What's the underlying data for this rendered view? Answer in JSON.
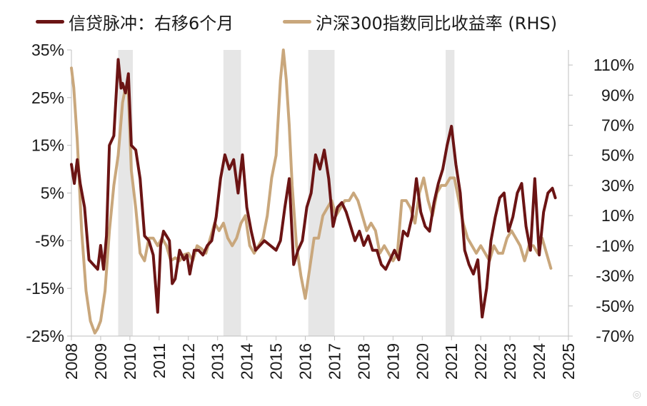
{
  "chart_data": {
    "type": "line",
    "legend_position": "top",
    "grid": false,
    "colors": {
      "credit": "#6b1414",
      "csi300": "#c9a77c",
      "shade": "#e6e6e6",
      "axis": "#bfbfbf",
      "text": "#1a1a1a"
    },
    "left_axis": {
      "ylim": [
        -25,
        35
      ],
      "ticks": [
        35,
        25,
        15,
        5,
        -5,
        -15,
        -25
      ],
      "tick_labels": [
        "35%",
        "25%",
        "15%",
        "5%",
        "-5%",
        "-15%",
        "-25%"
      ]
    },
    "right_axis": {
      "ylim": [
        -70,
        120
      ],
      "ticks": [
        110,
        90,
        70,
        50,
        30,
        10,
        -10,
        -30,
        -50,
        -70
      ],
      "tick_labels": [
        "110%",
        "90%",
        "70%",
        "50%",
        "30%",
        "10%",
        "-10%",
        "-30%",
        "-50%",
        "-70%"
      ]
    },
    "x_axis": {
      "xlim": [
        2008,
        2025
      ],
      "ticks": [
        2008,
        2009,
        2010,
        2011,
        2012,
        2013,
        2014,
        2015,
        2016,
        2017,
        2018,
        2019,
        2020,
        2021,
        2022,
        2023,
        2024,
        2025
      ],
      "tick_labels": [
        "2008",
        "2009",
        "2010",
        "2011",
        "2012",
        "2013",
        "2014",
        "2015",
        "2016",
        "2017",
        "2018",
        "2019",
        "2020",
        "2021",
        "2022",
        "2023",
        "2024",
        "2025"
      ]
    },
    "shaded_periods": [
      [
        2009.6,
        2010.1
      ],
      [
        2013.2,
        2013.8
      ],
      [
        2016.1,
        2017.0
      ],
      [
        2020.8,
        2021.1
      ]
    ],
    "series": [
      {
        "name": "信贷脉冲：右移6个月",
        "axis": "left",
        "color": "#6b1414",
        "x": [
          2008.0,
          2008.1,
          2008.2,
          2008.3,
          2008.45,
          2008.6,
          2008.75,
          2008.9,
          2009.0,
          2009.1,
          2009.2,
          2009.3,
          2009.45,
          2009.6,
          2009.7,
          2009.75,
          2009.85,
          2009.95,
          2010.05,
          2010.2,
          2010.35,
          2010.5,
          2010.65,
          2010.8,
          2010.95,
          2011.05,
          2011.15,
          2011.25,
          2011.35,
          2011.45,
          2011.55,
          2011.7,
          2011.85,
          2011.95,
          2012.05,
          2012.2,
          2012.35,
          2012.5,
          2012.65,
          2012.8,
          2012.95,
          2013.1,
          2013.25,
          2013.4,
          2013.55,
          2013.7,
          2013.85,
          2014.0,
          2014.15,
          2014.3,
          2014.45,
          2014.6,
          2014.8,
          2015.0,
          2015.15,
          2015.3,
          2015.45,
          2015.6,
          2015.75,
          2015.9,
          2016.05,
          2016.2,
          2016.35,
          2016.5,
          2016.65,
          2016.8,
          2016.95,
          2017.1,
          2017.25,
          2017.4,
          2017.55,
          2017.7,
          2017.85,
          2018.0,
          2018.15,
          2018.3,
          2018.45,
          2018.6,
          2018.75,
          2018.9,
          2019.05,
          2019.2,
          2019.35,
          2019.5,
          2019.65,
          2019.8,
          2019.95,
          2020.1,
          2020.25,
          2020.4,
          2020.55,
          2020.7,
          2020.85,
          2021.0,
          2021.15,
          2021.3,
          2021.45,
          2021.6,
          2021.75,
          2021.9,
          2022.05,
          2022.2,
          2022.35,
          2022.5,
          2022.65,
          2022.8,
          2022.95,
          2023.1,
          2023.25,
          2023.4,
          2023.55,
          2023.7,
          2023.85,
          2024.0,
          2024.15,
          2024.3,
          2024.45,
          2024.55
        ],
        "y": [
          11,
          7,
          12,
          7,
          2,
          -9,
          -10,
          -11,
          -6,
          -11,
          -4,
          15,
          17,
          33,
          27,
          28,
          26,
          30,
          15,
          14,
          8,
          -4,
          -5,
          -8,
          -20,
          -6,
          -3,
          -4,
          -5,
          -14,
          -13,
          -7,
          -9,
          -8,
          -12,
          -7,
          -7,
          -8,
          -6,
          -5,
          0,
          8,
          13,
          10,
          12,
          5,
          13,
          2,
          -3,
          -7,
          -6,
          -5,
          -6,
          -7,
          -5,
          2,
          8,
          -10,
          -7,
          -5,
          2,
          5,
          13,
          10,
          14,
          8,
          -2,
          2,
          3,
          1,
          -2,
          -5,
          -3,
          -6,
          -4,
          -7,
          -7,
          -10,
          -11,
          -9,
          -7,
          -9,
          -3,
          -4,
          0,
          8,
          1,
          -2,
          -3,
          3,
          7,
          10,
          15,
          19,
          11,
          5,
          -7,
          -10,
          -12,
          -9,
          -21,
          -15,
          -5,
          0,
          4,
          5,
          -3,
          0,
          5,
          7,
          -2,
          -7,
          8,
          -8,
          1,
          5,
          6,
          4
        ]
      },
      {
        "name": "沪深300指数同比收益率 (RHS)",
        "axis": "right",
        "color": "#c9a77c",
        "x": [
          2008.0,
          2008.08,
          2008.2,
          2008.35,
          2008.5,
          2008.65,
          2008.8,
          2008.9,
          2009.0,
          2009.15,
          2009.3,
          2009.45,
          2009.6,
          2009.75,
          2009.85,
          2009.95,
          2010.05,
          2010.2,
          2010.35,
          2010.5,
          2010.65,
          2010.8,
          2010.95,
          2011.1,
          2011.25,
          2011.4,
          2011.55,
          2011.7,
          2011.85,
          2012.0,
          2012.15,
          2012.3,
          2012.45,
          2012.6,
          2012.75,
          2012.9,
          2013.05,
          2013.2,
          2013.35,
          2013.5,
          2013.65,
          2013.8,
          2013.95,
          2014.1,
          2014.25,
          2014.4,
          2014.55,
          2014.7,
          2014.85,
          2015.0,
          2015.15,
          2015.25,
          2015.35,
          2015.45,
          2015.55,
          2015.7,
          2015.85,
          2016.0,
          2016.15,
          2016.3,
          2016.45,
          2016.6,
          2016.75,
          2016.9,
          2017.05,
          2017.2,
          2017.35,
          2017.5,
          2017.65,
          2017.8,
          2017.95,
          2018.1,
          2018.25,
          2018.4,
          2018.55,
          2018.7,
          2018.85,
          2019.0,
          2019.15,
          2019.3,
          2019.45,
          2019.6,
          2019.75,
          2019.9,
          2020.05,
          2020.2,
          2020.35,
          2020.5,
          2020.65,
          2020.8,
          2020.95,
          2021.1,
          2021.25,
          2021.4,
          2021.55,
          2021.7,
          2021.85,
          2022.0,
          2022.15,
          2022.3,
          2022.45,
          2022.6,
          2022.75,
          2022.9,
          2023.05,
          2023.2,
          2023.35,
          2023.5,
          2023.65,
          2023.8,
          2023.95,
          2024.1,
          2024.25,
          2024.4
        ],
        "y": [
          108,
          95,
          60,
          0,
          -40,
          -60,
          -68,
          -65,
          -60,
          -40,
          0,
          30,
          50,
          85,
          95,
          90,
          40,
          15,
          -15,
          -20,
          -5,
          -5,
          -10,
          -5,
          -10,
          -20,
          -18,
          -20,
          -16,
          -15,
          -20,
          -10,
          -12,
          -15,
          -5,
          5,
          0,
          5,
          -5,
          -10,
          -5,
          5,
          10,
          -10,
          -15,
          -10,
          -5,
          10,
          35,
          50,
          100,
          120,
          100,
          70,
          30,
          -10,
          -30,
          -45,
          -25,
          -5,
          -5,
          10,
          15,
          20,
          10,
          15,
          20,
          20,
          25,
          20,
          10,
          0,
          5,
          0,
          -15,
          -10,
          -15,
          -20,
          -15,
          20,
          20,
          15,
          5,
          25,
          35,
          20,
          10,
          25,
          30,
          30,
          35,
          35,
          20,
          5,
          -5,
          -10,
          -15,
          -10,
          -15,
          -20,
          -10,
          -15,
          -15,
          -5,
          0,
          -5,
          -10,
          -20,
          -10,
          -10,
          -15,
          -5,
          -15,
          -25
        ]
      }
    ]
  }
}
